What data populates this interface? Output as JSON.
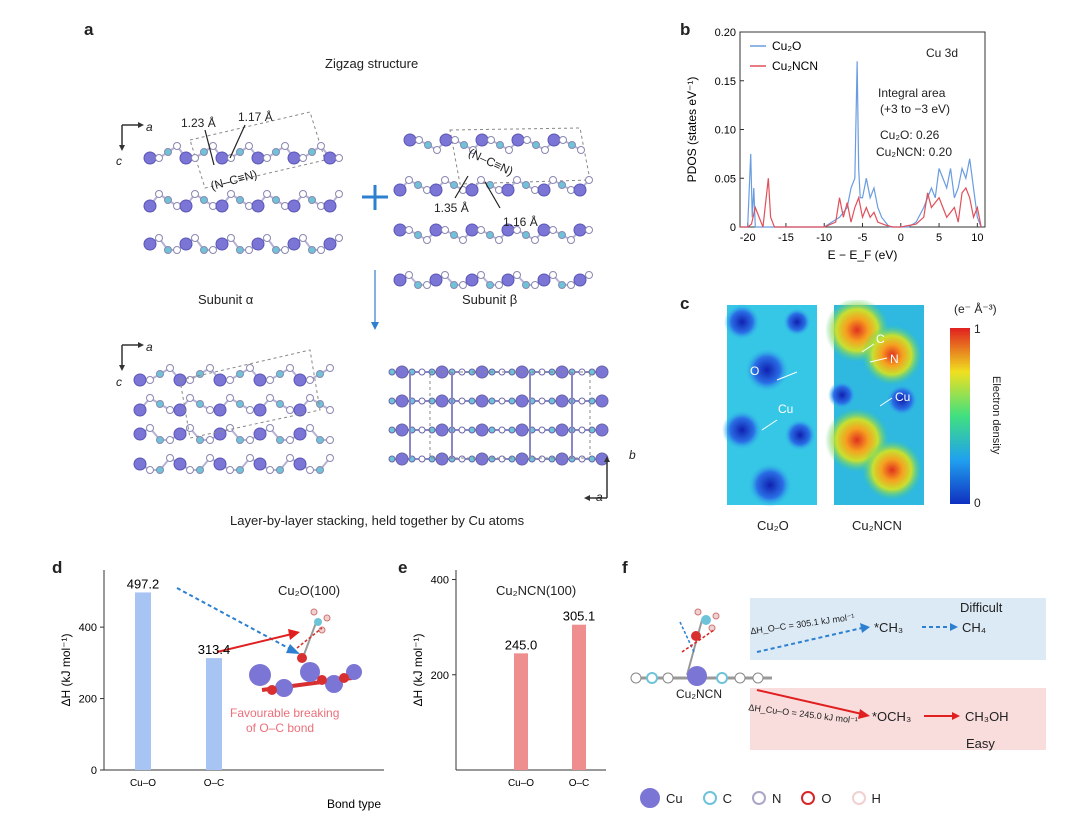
{
  "panels": {
    "a": {
      "label": "a",
      "title": "Zigzag structure",
      "axis_a": "a",
      "axis_c": "c",
      "axis_b": "b",
      "bond1": "1.23 Å",
      "bond2": "1.17 Å",
      "bond3": "1.35 Å",
      "bond4": "1.16 Å",
      "ncn_left": "(N–C≡N)",
      "ncn_right": "(N–C≡N)",
      "subunit_alpha": "Subunit α",
      "subunit_beta": "Subunit β",
      "stacking": "Layer-by-layer stacking, held together by Cu atoms"
    },
    "b": {
      "label": "b",
      "annotation_title": "Cu 3d",
      "integral_line1": "Integral area",
      "integral_line2": "(+3 to −3 eV)",
      "cu2o_area": "Cu₂O: 0.26",
      "cu2ncn_area": "Cu₂NCN: 0.20"
    },
    "c": {
      "label": "c",
      "unit": "(e⁻ Å⁻³)",
      "colorbar_max": "1",
      "colorbar_min": "0",
      "colorbar_title": "Electron density",
      "label_o": "O",
      "label_cu_left": "Cu",
      "label_c": "C",
      "label_n": "N",
      "label_cu_right": "Cu",
      "caption_left": "Cu₂O",
      "caption_right": "Cu₂NCN"
    },
    "d": {
      "label": "d",
      "title": "Cu₂O(100)",
      "note_line1": "Favourable breaking",
      "note_line2": "of O–C bond"
    },
    "e": {
      "label": "e",
      "title": "Cu₂NCN(100)"
    },
    "f": {
      "label": "f",
      "difficult": "Difficult",
      "easy": "Easy",
      "dh_top": "ΔH_O–C = 305.1 kJ mol⁻¹",
      "dh_bottom": "ΔH_Cu–O = 245.0 kJ mol⁻¹",
      "ch3": "*CH₃",
      "ch4": "CH₄",
      "och3": "*OCH₃",
      "ch3oh": "CH₃OH",
      "cu2ncn": "Cu₂NCN"
    }
  },
  "legend": [
    {
      "label": "Cu",
      "color": "#7b76d6"
    },
    {
      "label": "C",
      "color": "#6fc3d8"
    },
    {
      "label": "N",
      "color": "#a9a6c9"
    },
    {
      "label": "O",
      "color": "#d7262a"
    },
    {
      "label": "H",
      "color": "#f1d0d0"
    }
  ],
  "colors": {
    "cu2o": "#6a9de0",
    "cu2ncn": "#e0505a",
    "bar_blue": "#a8c4f2",
    "bar_red": "#ee8e8e"
  },
  "chart_data": [
    {
      "type": "line",
      "panel": "b",
      "xlabel": "E − E_F (eV)",
      "ylabel": "PDOS (states eV⁻¹)",
      "xlim": [
        -21,
        11
      ],
      "ylim": [
        0,
        0.2
      ],
      "xticks": [
        -20,
        -15,
        -10,
        -5,
        0,
        5,
        10
      ],
      "yticks": [
        0,
        0.05,
        0.1,
        0.15,
        0.2
      ],
      "yticklabels": [
        "0",
        "0.05",
        "0.10",
        "0.15",
        "0.20"
      ],
      "legend_placement": "top-left",
      "series": [
        {
          "name": "Cu₂O",
          "x": [
            -21,
            -20,
            -19.6,
            -19.4,
            -19.2,
            -19,
            -18.5,
            -10,
            -9,
            -8,
            -7,
            -6.5,
            -6,
            -5.7,
            -5.5,
            -5.3,
            -5,
            -4.5,
            -4,
            -3.5,
            -3,
            -2.5,
            -2,
            -1.5,
            -1,
            0,
            1,
            2,
            3,
            4,
            4.5,
            5,
            5.5,
            6,
            6.5,
            7,
            7.5,
            8,
            8.5,
            9,
            9.5,
            10,
            10.5
          ],
          "y": [
            0,
            0,
            0.075,
            0.01,
            0.04,
            0,
            0,
            0,
            0.005,
            0.01,
            0.02,
            0.04,
            0.05,
            0.17,
            0.06,
            0.03,
            0.03,
            0.05,
            0.03,
            0.04,
            0.02,
            0.01,
            0.005,
            0,
            0,
            0,
            0,
            0.005,
            0.02,
            0.04,
            0.03,
            0.06,
            0.05,
            0.04,
            0.06,
            0.03,
            0.04,
            0.06,
            0.05,
            0.07,
            0.04,
            0.01,
            0
          ]
        },
        {
          "name": "Cu₂NCN",
          "x": [
            -21,
            -20,
            -19.5,
            -19,
            -18,
            -17.3,
            -17,
            -16.5,
            -10,
            -8.5,
            -8,
            -7.5,
            -7,
            -6.5,
            -6,
            -5.5,
            -5,
            -4.5,
            -4,
            -3.5,
            -3,
            -2,
            -1,
            0,
            2,
            3,
            3.5,
            4,
            5,
            6,
            7,
            7.5,
            8,
            8.5,
            9,
            9.5,
            10,
            10.5
          ],
          "y": [
            0,
            0,
            0.003,
            0.02,
            0,
            0.05,
            0.01,
            0,
            0,
            0.005,
            0.03,
            0.01,
            0.025,
            0.005,
            0.02,
            0.03,
            0.01,
            0.02,
            0.01,
            0.015,
            0.005,
            0.002,
            0,
            0,
            0.003,
            0.01,
            0.035,
            0.02,
            0.03,
            0.01,
            0.02,
            0.005,
            0.035,
            0.04,
            0.03,
            0.01,
            0.02,
            0
          ]
        }
      ]
    },
    {
      "type": "bar",
      "panel": "d",
      "categories": [
        "Cu–O",
        "O–C"
      ],
      "values": [
        497.2,
        313.4
      ],
      "ylabel": "ΔH (kJ mol⁻¹)",
      "xlabel": "Bond type",
      "ylim": [
        0,
        560
      ],
      "yticks": [
        0,
        200,
        400
      ]
    },
    {
      "type": "bar",
      "panel": "e",
      "categories": [
        "Cu–O",
        "O–C"
      ],
      "values": [
        245.0,
        305.1
      ],
      "ylabel": "ΔH (kJ mol⁻¹)",
      "ylim": [
        0,
        420
      ],
      "yticks": [
        200,
        400
      ]
    }
  ]
}
